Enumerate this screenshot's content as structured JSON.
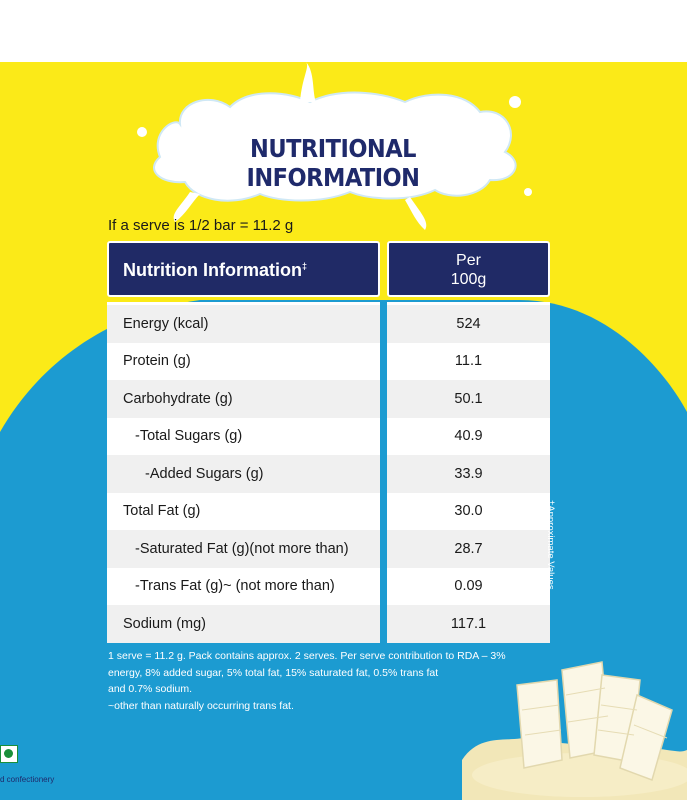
{
  "title": "NUTRITIONAL INFORMATION",
  "serve_line": "If a serve is 1/2 bar =  11.2 g",
  "table": {
    "header_left": "Nutrition Information",
    "header_left_mark": "‡",
    "header_right_line1": "Per",
    "header_right_line2": "100g",
    "rows": [
      {
        "label": "Energy (kcal)",
        "value": "524"
      },
      {
        "label": "Protein (g)",
        "value": "11.1"
      },
      {
        "label": "Carbohydrate (g)",
        "value": "50.1"
      },
      {
        "label": "-Total Sugars (g)",
        "value": "40.9"
      },
      {
        "label": "-Added Sugars (g)",
        "value": "33.9"
      },
      {
        "label": "Total Fat (g)",
        "value": "30.0"
      },
      {
        "label": "-Saturated Fat (g)(not more than)",
        "value": "28.7"
      },
      {
        "label": "-Trans Fat (g)~ (not more than)",
        "value": "0.09"
      },
      {
        "label": "Sodium (mg)",
        "value": "117.1"
      }
    ]
  },
  "side_note": "‡Approximate Values",
  "footnote": {
    "line1": "1 serve = 11.2 g. Pack contains approx. 2 serves. Per serve contribution to RDA – 3%",
    "line2": "energy, 8% added sugar, 5% total fat,  15% saturated fat, 0.5% trans fat",
    "line3": "and 0.7% sodium.",
    "line4": "~other than naturally occurring trans fat."
  },
  "corner_text": "d confectionery",
  "icons": [
    "milk-splash-icon",
    "veg-mark-icon",
    "white-chocolate-icon"
  ],
  "colors": {
    "yellow": "#fbea18",
    "blue": "#1c9bd1",
    "navy": "#202a66"
  }
}
